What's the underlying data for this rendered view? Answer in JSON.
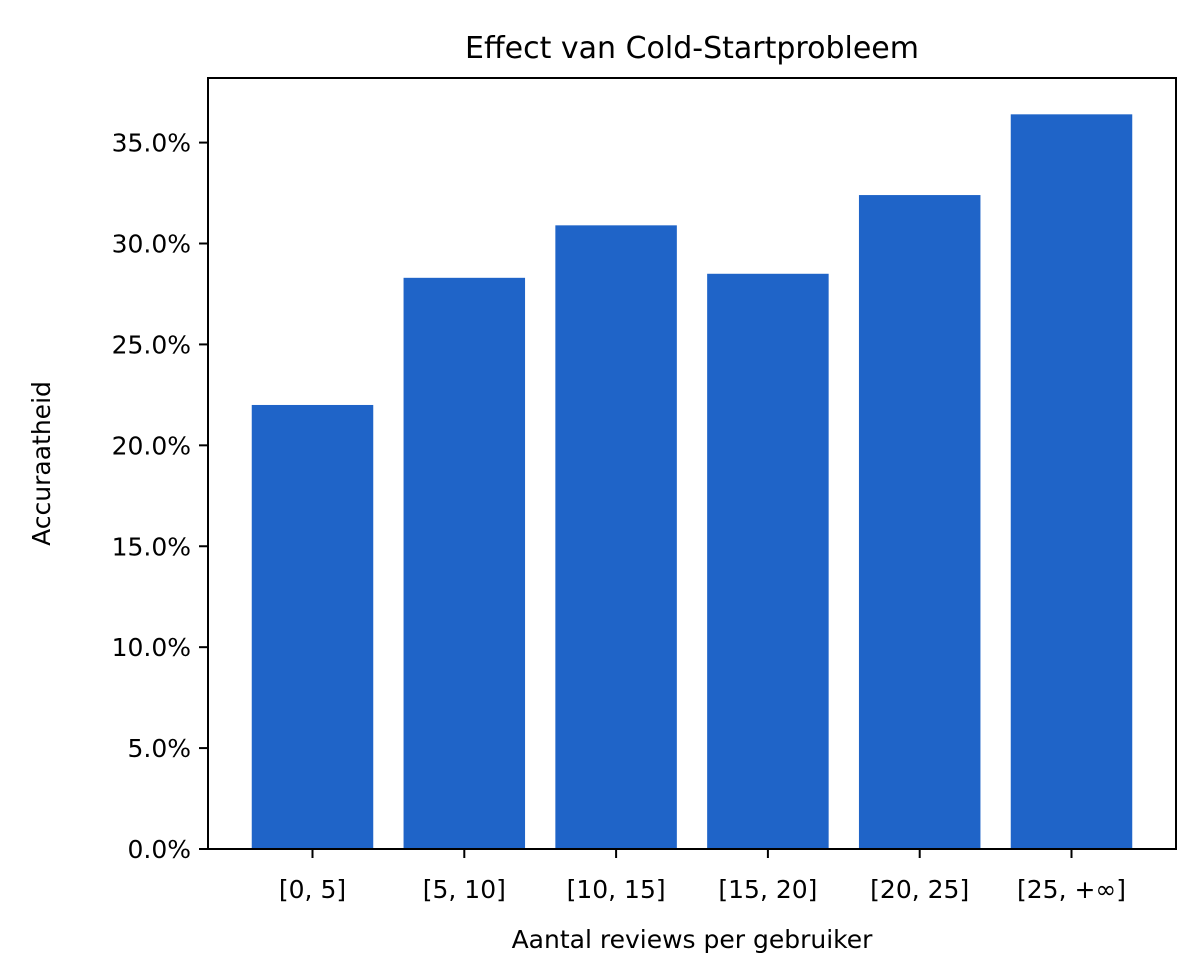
{
  "chart_data": {
    "type": "bar",
    "title": "Effect van Cold-Startprobleem",
    "xlabel": "Aantal reviews per gebruiker",
    "ylabel": "Accuraatheid",
    "categories": [
      "[0, 5]",
      "[5, 10]",
      "[10, 15]",
      "[15, 20]",
      "[20, 25]",
      "[25, +∞]"
    ],
    "values": [
      0.22,
      0.283,
      0.309,
      0.285,
      0.324,
      0.364
    ],
    "ylim": [
      0,
      0.382
    ],
    "yticks": [
      0.0,
      0.05,
      0.1,
      0.15,
      0.2,
      0.25,
      0.3,
      0.35
    ],
    "ytick_labels": [
      "0.0%",
      "5.0%",
      "10.0%",
      "15.0%",
      "20.0%",
      "25.0%",
      "30.0%",
      "35.0%"
    ],
    "bar_color": "#1f64c8",
    "grid": false,
    "legend": "none"
  }
}
